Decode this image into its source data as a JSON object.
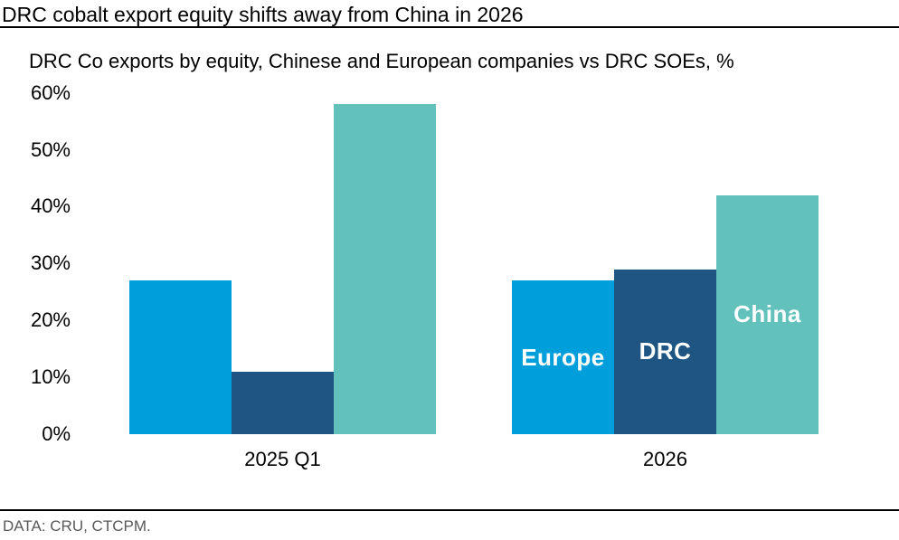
{
  "header": {
    "title": "DRC cobalt export equity shifts away from China in 2026"
  },
  "chart_data": {
    "type": "bar",
    "title": "DRC Co exports by equity, Chinese and European companies vs DRC SOEs, %",
    "categories": [
      "2025 Q1",
      "2026"
    ],
    "series": [
      {
        "name": "Europe",
        "color": "#009edb",
        "values": [
          27,
          27
        ]
      },
      {
        "name": "DRC",
        "color": "#1e5583",
        "values": [
          11,
          29
        ]
      },
      {
        "name": "China",
        "color": "#62c1bb",
        "values": [
          58,
          42
        ]
      }
    ],
    "bar_labels_on_category": "2026",
    "bar_label_color": "#ffffff",
    "xlabel": "",
    "ylabel": "",
    "ylim": [
      0,
      60
    ],
    "yticks": [
      {
        "value": 0,
        "label": "0%"
      },
      {
        "value": 10,
        "label": "10%"
      },
      {
        "value": 20,
        "label": "20%"
      },
      {
        "value": 30,
        "label": "30%"
      },
      {
        "value": 40,
        "label": "40%"
      },
      {
        "value": 50,
        "label": "50%"
      },
      {
        "value": 60,
        "label": "60%"
      }
    ],
    "grid": false,
    "legend": "labels-inside-bars"
  },
  "footer": {
    "source": "DATA: CRU, CTCPM."
  }
}
